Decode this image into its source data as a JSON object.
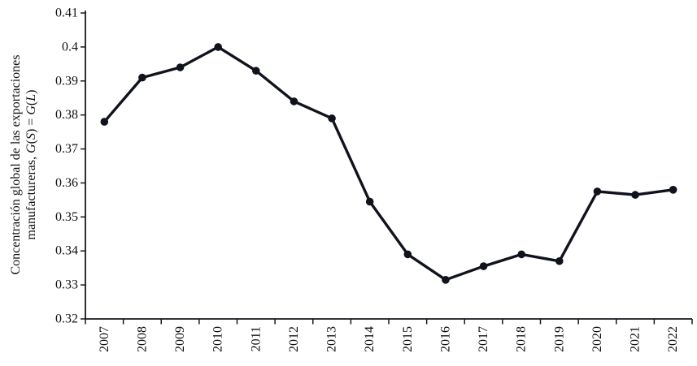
{
  "chart_data": {
    "type": "line",
    "title": "",
    "xlabel": "",
    "ylabel_line1": "Concentración global de las exportaciones",
    "ylabel_line2_parts": [
      {
        "text": "manufactureras, ",
        "italic": false
      },
      {
        "text": "G",
        "italic": true
      },
      {
        "text": "(",
        "italic": false
      },
      {
        "text": "S",
        "italic": true
      },
      {
        "text": ") = ",
        "italic": false
      },
      {
        "text": "G",
        "italic": true
      },
      {
        "text": "(",
        "italic": false
      },
      {
        "text": "L",
        "italic": true
      },
      {
        "text": ")",
        "italic": false
      }
    ],
    "categories": [
      "2007",
      "2008",
      "2009",
      "2010",
      "2011",
      "2012",
      "2013",
      "2014",
      "2015",
      "2016",
      "2017",
      "2018",
      "2019",
      "2020",
      "2021",
      "2022"
    ],
    "values": [
      0.378,
      0.391,
      0.394,
      0.4,
      0.393,
      0.384,
      0.379,
      0.3545,
      0.339,
      0.3315,
      0.3355,
      0.339,
      0.337,
      0.3575,
      0.3565,
      0.358
    ],
    "ylim": [
      0.32,
      0.41
    ],
    "ytick_step": 0.01,
    "ytick_labels": [
      "0.32",
      "0.33",
      "0.34",
      "0.35",
      "0.36",
      "0.37",
      "0.38",
      "0.39",
      "0.4",
      "0.41"
    ],
    "grid": false,
    "legend": "none",
    "marker": "circle",
    "line_color": "#10131c",
    "axis_color": "#16181f",
    "text_color": "#111111",
    "background": "#ffffff"
  }
}
